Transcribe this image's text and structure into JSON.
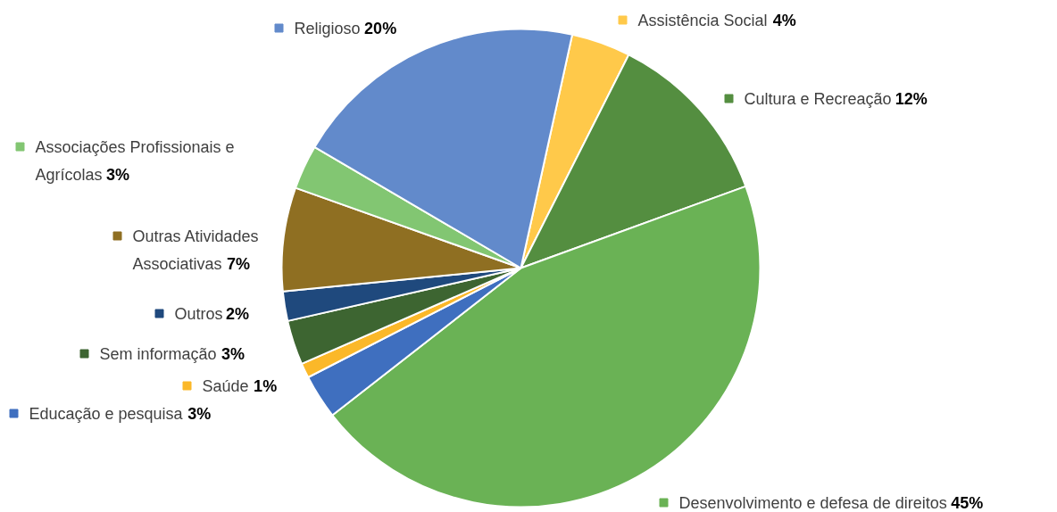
{
  "chart_data": {
    "type": "pie",
    "categories": [
      "Assistência Social",
      "Cultura e Recreação",
      "Desenvolvimento e defesa de direitos",
      "Educação e pesquisa",
      "Saúde",
      "Sem informação",
      "Outros",
      "Outras Atividades Associativas",
      "Associações Profissionais e Agrícolas",
      "Religioso"
    ],
    "values": [
      4,
      12,
      45,
      3,
      1,
      3,
      2,
      7,
      3,
      20
    ],
    "value_labels": [
      "4%",
      "12%",
      "45%",
      "3%",
      "1%",
      "3%",
      "2%",
      "7%",
      "3%",
      "20%"
    ],
    "legend": "left",
    "colors": [
      "#ffc94a",
      "#548e40",
      "#6ab255",
      "#3f6fbf",
      "#fbb829",
      "#3d6531",
      "#1f497d",
      "#8f6f22",
      "#82c672",
      "#628acb"
    ]
  }
}
